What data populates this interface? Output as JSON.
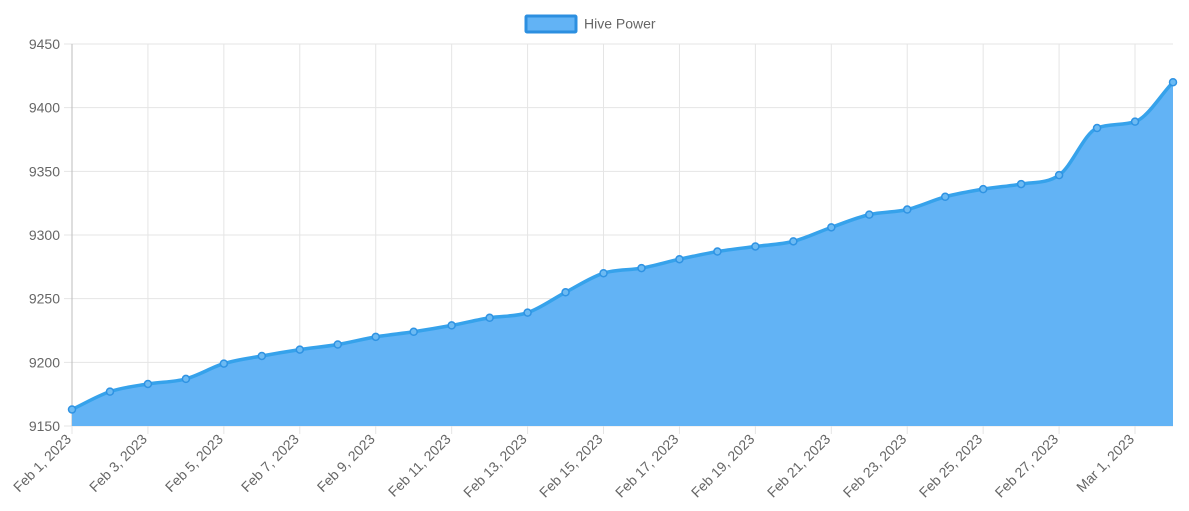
{
  "chart_data": {
    "type": "area",
    "legend": {
      "position": "top-center",
      "entries": [
        "Hive Power"
      ]
    },
    "grid": true,
    "ylim": [
      9150,
      9450
    ],
    "yticks": [
      9150,
      9200,
      9250,
      9300,
      9350,
      9400,
      9450
    ],
    "xtick_labels": [
      "Feb 1, 2023",
      "Feb 3, 2023",
      "Feb 5, 2023",
      "Feb 7, 2023",
      "Feb 9, 2023",
      "Feb 11, 2023",
      "Feb 13, 2023",
      "Feb 15, 2023",
      "Feb 17, 2023",
      "Feb 19, 2023",
      "Feb 21, 2023",
      "Feb 23, 2023",
      "Feb 25, 2023",
      "Feb 27, 2023",
      "Mar 1, 2023"
    ],
    "x": [
      "2023-02-01",
      "2023-02-02",
      "2023-02-03",
      "2023-02-04",
      "2023-02-05",
      "2023-02-06",
      "2023-02-07",
      "2023-02-08",
      "2023-02-09",
      "2023-02-10",
      "2023-02-11",
      "2023-02-12",
      "2023-02-13",
      "2023-02-14",
      "2023-02-15",
      "2023-02-16",
      "2023-02-17",
      "2023-02-18",
      "2023-02-19",
      "2023-02-20",
      "2023-02-21",
      "2023-02-22",
      "2023-02-23",
      "2023-02-24",
      "2023-02-25",
      "2023-02-26",
      "2023-02-27",
      "2023-02-28",
      "2023-03-01",
      "2023-03-02"
    ],
    "series": [
      {
        "name": "Hive Power",
        "color": "#36a2eb",
        "fill": "#62b3f5",
        "values": [
          9163,
          9177,
          9183,
          9187,
          9199,
          9205,
          9210,
          9214,
          9220,
          9224,
          9229,
          9235,
          9239,
          9255,
          9270,
          9274,
          9281,
          9287,
          9291,
          9295,
          9306,
          9316,
          9320,
          9330,
          9336,
          9340,
          9347,
          9384,
          9389,
          9420
        ]
      }
    ]
  }
}
